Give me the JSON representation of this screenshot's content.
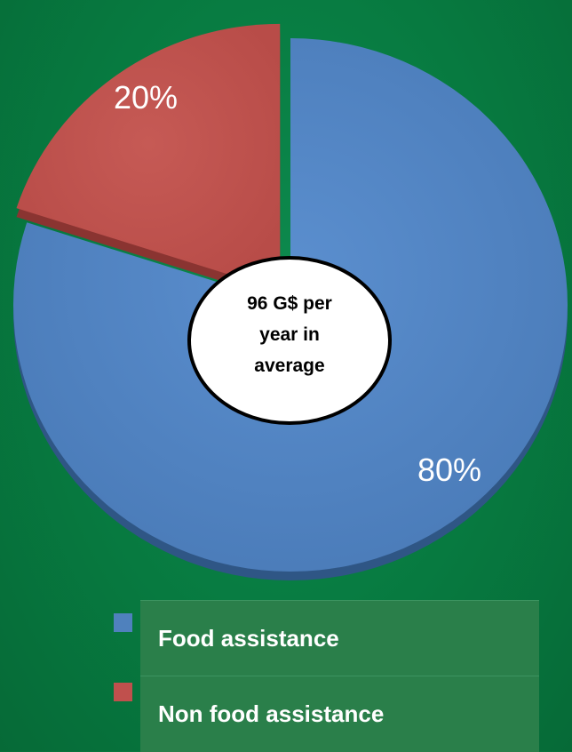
{
  "chart_data": {
    "type": "pie",
    "center_label": [
      "96 G$ per",
      "year in",
      "average"
    ],
    "slices": [
      {
        "name": "Food assistance",
        "value": 80,
        "label": "80%",
        "color": "#4f81bd"
      },
      {
        "name": "Non food assistance",
        "value": 20,
        "label": "20%",
        "color": "#c0504d"
      }
    ],
    "legend_placement": "bottom"
  },
  "legend": {
    "items": [
      {
        "label": "Food assistance",
        "color": "#4f81bd"
      },
      {
        "label": "Non food assistance",
        "color": "#c0504d"
      }
    ]
  }
}
